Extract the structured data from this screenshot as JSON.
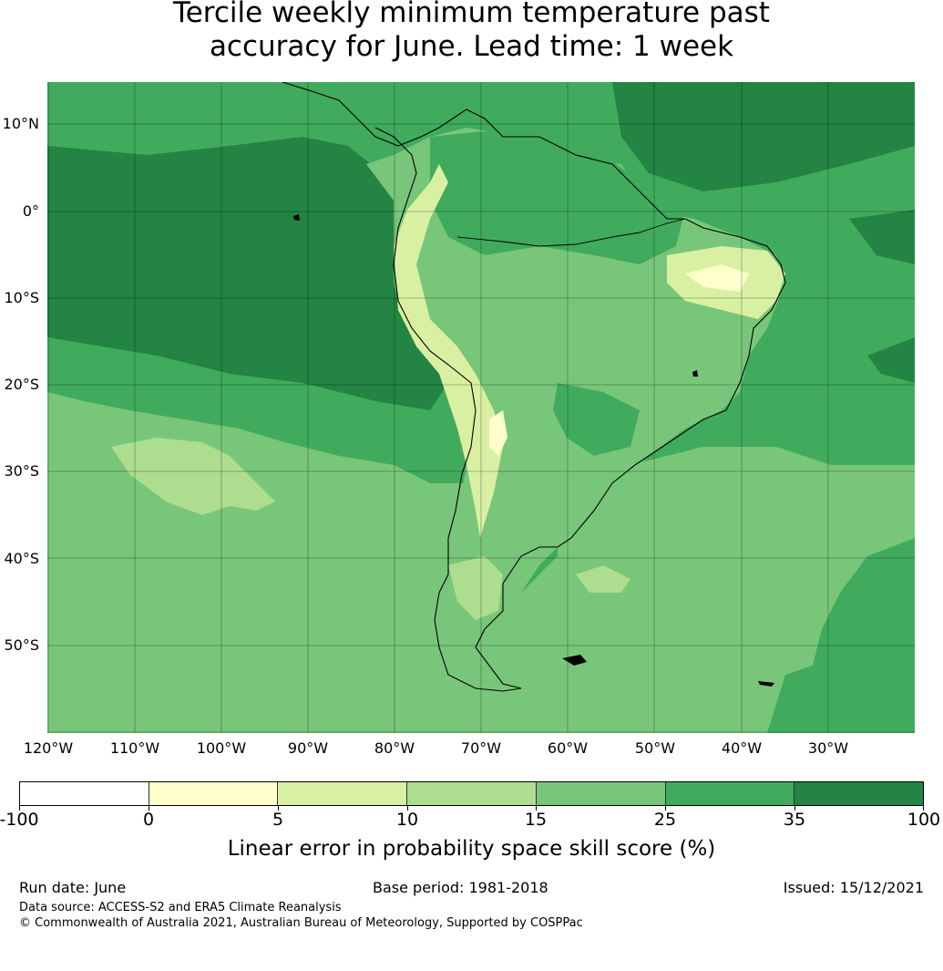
{
  "title": {
    "line1": "Tercile weekly minimum temperature past",
    "line2": "accuracy for June. Lead time: 1 week"
  },
  "map": {
    "region": "South America and surrounding oceans",
    "lat_labels": [
      "10°N",
      "0°",
      "10°S",
      "20°S",
      "30°S",
      "40°S",
      "50°S"
    ],
    "lon_labels": [
      "120°W",
      "110°W",
      "100°W",
      "90°W",
      "80°W",
      "70°W",
      "60°W",
      "50°W",
      "40°W",
      "30°W"
    ],
    "grid": true
  },
  "colorbar": {
    "bins": [
      {
        "from": -100,
        "to": 0,
        "color": "#ffffff"
      },
      {
        "from": 0,
        "to": 5,
        "color": "#ffffcc"
      },
      {
        "from": 5,
        "to": 10,
        "color": "#d9f0a3"
      },
      {
        "from": 10,
        "to": 15,
        "color": "#addd8e"
      },
      {
        "from": 15,
        "to": 25,
        "color": "#78c679"
      },
      {
        "from": 25,
        "to": 35,
        "color": "#41ab5d"
      },
      {
        "from": 35,
        "to": 100,
        "color": "#238443"
      }
    ],
    "tick_labels": [
      "-100",
      "0",
      "5",
      "10",
      "15",
      "25",
      "35",
      "100"
    ],
    "label": "Linear error in probability space skill score (%)"
  },
  "footer": {
    "run_date": "Run date: June",
    "base_period": "Base period: 1981-2018",
    "issued": "Issued: 15/12/2021",
    "data_source": "Data source: ACCESS-S2 and ERA5 Climate Reanalysis",
    "copyright": "© Commonwealth of Australia 2021, Australian Bureau of Meteorology, Supported by COSPPac"
  }
}
